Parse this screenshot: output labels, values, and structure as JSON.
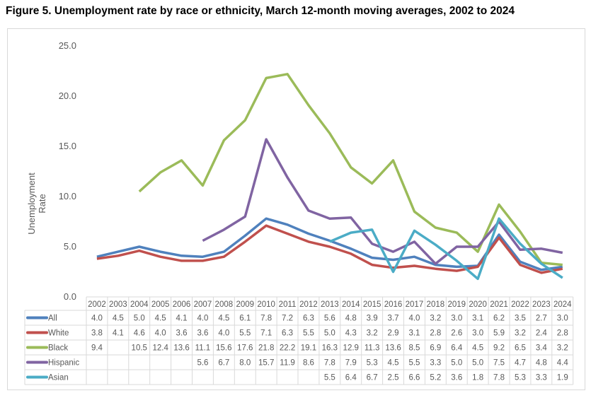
{
  "title": "Figure 5. Unemployment rate by race or ethnicity, March 12-month moving averages, 2002 to 2024",
  "chart_data": {
    "type": "line",
    "title": "Figure 5. Unemployment rate by race or ethnicity, March 12-month moving averages, 2002 to 2024",
    "xlabel": "",
    "ylabel": "Unemployment Rate",
    "ylim": [
      0,
      25
    ],
    "yticks": [
      "0.0",
      "5.0",
      "10.0",
      "15.0",
      "20.0",
      "25.0"
    ],
    "grid": false,
    "legend": "data-table-below",
    "categories": [
      "2002",
      "2003",
      "2004",
      "2005",
      "2006",
      "2007",
      "2008",
      "2009",
      "2010",
      "2011",
      "2012",
      "2013",
      "2014",
      "2015",
      "2016",
      "2017",
      "2018",
      "2019",
      "2020",
      "2021",
      "2022",
      "2023",
      "2024"
    ],
    "series": [
      {
        "name": "All",
        "color": "#4f81bd",
        "values": [
          4.0,
          4.5,
          5.0,
          4.5,
          4.1,
          4.0,
          4.5,
          6.1,
          7.8,
          7.2,
          6.3,
          5.6,
          4.8,
          3.9,
          3.7,
          4.0,
          3.2,
          3.0,
          3.1,
          6.2,
          3.5,
          2.7,
          3.0
        ]
      },
      {
        "name": "White",
        "color": "#c0504d",
        "values": [
          3.8,
          4.1,
          4.6,
          4.0,
          3.6,
          3.6,
          4.0,
          5.5,
          7.1,
          6.3,
          5.5,
          5.0,
          4.3,
          3.2,
          2.9,
          3.1,
          2.8,
          2.6,
          3.0,
          5.9,
          3.2,
          2.4,
          2.8
        ]
      },
      {
        "name": "Black",
        "color": "#9bbb59",
        "values": [
          9.4,
          null,
          10.5,
          12.4,
          13.6,
          11.1,
          15.6,
          17.6,
          21.8,
          22.2,
          19.1,
          16.3,
          12.9,
          11.3,
          13.6,
          8.5,
          6.9,
          6.4,
          4.5,
          9.2,
          6.5,
          3.4,
          3.2
        ]
      },
      {
        "name": "Hispanic",
        "color": "#8064a2",
        "values": [
          null,
          null,
          null,
          null,
          null,
          5.6,
          6.7,
          8.0,
          15.7,
          11.9,
          8.6,
          7.8,
          7.9,
          5.3,
          4.5,
          5.5,
          3.3,
          5.0,
          5.0,
          7.5,
          4.7,
          4.8,
          4.4
        ]
      },
      {
        "name": "Asian",
        "color": "#4bacc6",
        "values": [
          null,
          null,
          null,
          null,
          null,
          null,
          null,
          null,
          null,
          null,
          null,
          5.5,
          6.4,
          6.7,
          2.5,
          6.6,
          5.2,
          3.6,
          1.8,
          7.8,
          5.3,
          3.3,
          1.9
        ]
      }
    ]
  }
}
